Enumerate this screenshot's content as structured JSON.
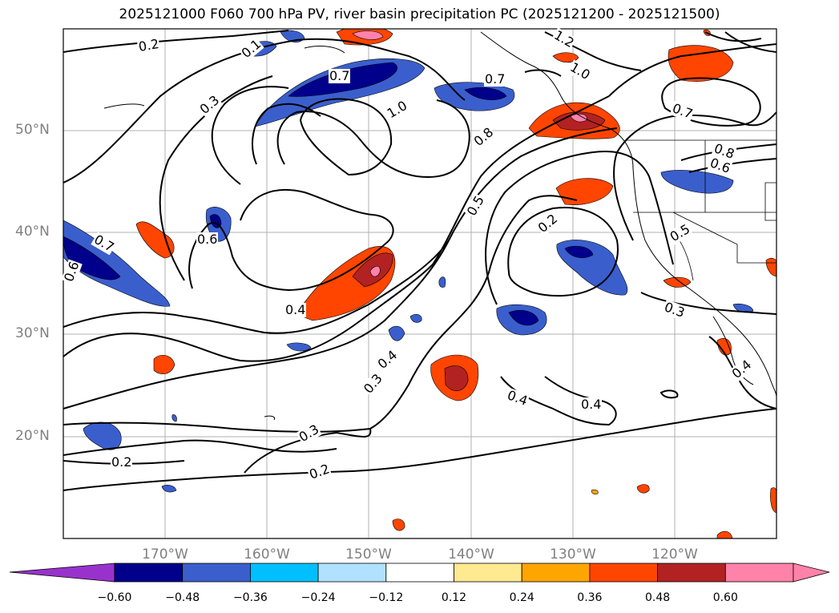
{
  "title": "2025121000 F060 700 hPa PV, river basin precipitation PC (2025121200 - 2025121500)",
  "lat_labels": [
    "50°N",
    "40°N",
    "30°N",
    "20°N"
  ],
  "lon_labels": [
    "170°W",
    "160°W",
    "150°W",
    "140°W",
    "130°W",
    "120°W"
  ],
  "contour_labels": [
    "0.2",
    "0.1",
    "0.7",
    "0.3",
    "1.0",
    "0.7",
    "1.2",
    "1.0",
    "0.7",
    "0.8",
    "0.8",
    "0.6",
    "0.5",
    "0.6",
    "0.2",
    "0.5",
    "0.7",
    "0.6",
    "0.4",
    "0.3",
    "0.4",
    "0.3",
    "0.4",
    "0.4",
    "0.3",
    "0.2",
    "0.2",
    "0.4"
  ],
  "colorbar": {
    "ticks": [
      "−0.60",
      "−0.48",
      "−0.36",
      "−0.24",
      "−0.12",
      "0.12",
      "0.24",
      "0.36",
      "0.48",
      "0.60"
    ],
    "colors": [
      "#9932cc",
      "#00008b",
      "#3a5fcd",
      "#00bfff",
      "#b0e2ff",
      "#ffffff",
      "#ffe991",
      "#ffa500",
      "#ff4500",
      "#b22222",
      "#ff82ab",
      "#ff82ab"
    ]
  }
}
